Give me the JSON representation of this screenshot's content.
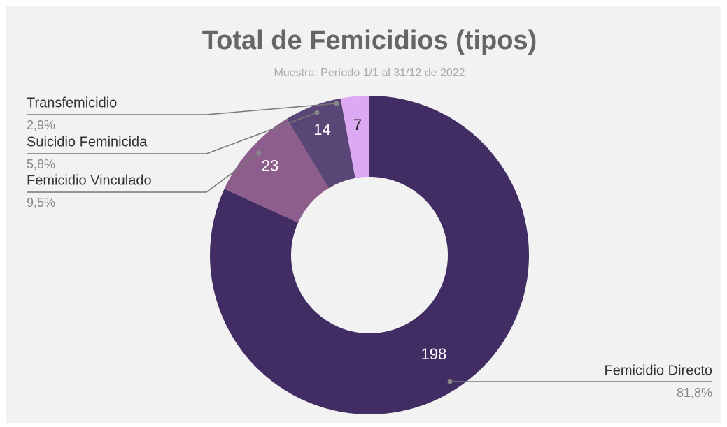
{
  "chart_data": {
    "type": "donut",
    "title": "Total de Femicidios (tipos)",
    "subtitle": "Muestra: Período 1/1 al 31/12 de 2022",
    "categories": [
      "Femicidio Directo",
      "Femicidio Vinculado",
      "Suicidio Feminicida",
      "Transfemicidio"
    ],
    "values": [
      198,
      23,
      14,
      7
    ],
    "percent_labels": [
      "81,8%",
      "9,5%",
      "5,8%",
      "2,9%"
    ],
    "colors": [
      "#412c63",
      "#8d5e8c",
      "#5a4577",
      "#dcaaf2"
    ]
  }
}
